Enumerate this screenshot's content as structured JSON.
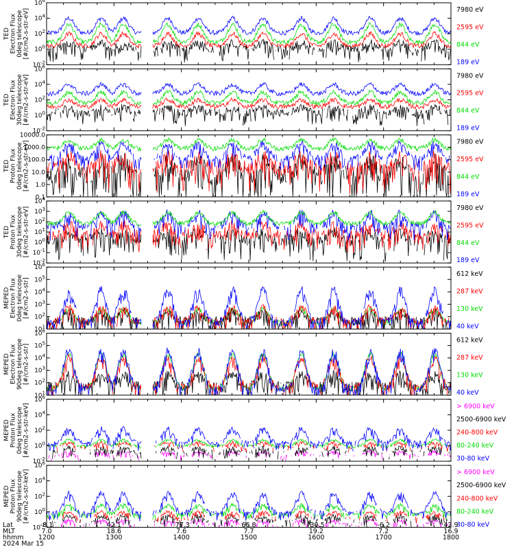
{
  "colors": {
    "black": "#000000",
    "red": "#ff0000",
    "green": "#00dd00",
    "blue": "#0000ff",
    "magenta": "#ff00ff"
  },
  "footer": {
    "row_labels": [
      "Lat",
      "MLT",
      "hhmm",
      "2024 Mar 15"
    ],
    "lat": [
      "-8.1",
      "42.1",
      "-77.3",
      "66.8",
      "-30.5",
      "-6.2",
      "42.9"
    ],
    "mlt": [
      "7.0",
      "18.6",
      "7.6",
      "7.7",
      "19.2",
      "7.2",
      "16.9"
    ],
    "hhmm": [
      "1200",
      "1300",
      "1400",
      "1500",
      "1600",
      "1700",
      "1800"
    ]
  },
  "chart_data": [
    {
      "type": "line",
      "ylabel": [
        "TED",
        "Electron Flux",
        "0deg telescope",
        "[#/cm2-s-str-eV]"
      ],
      "ylog": true,
      "ylim": [
        -2,
        6
      ],
      "ytick_labels": [
        {
          "e": 6,
          "text": "10^6"
        },
        {
          "e": 4,
          "text": "10^4"
        },
        {
          "e": 2,
          "text": "10^2"
        },
        {
          "e": 0,
          "text": "10^0"
        },
        {
          "e": -2,
          "text": "10^-2"
        }
      ],
      "legend": [
        {
          "label": "7980 eV",
          "color": "black"
        },
        {
          "label": "2595 eV",
          "color": "red"
        },
        {
          "label": "844 eV",
          "color": "green"
        },
        {
          "label": "189 eV",
          "color": "blue"
        }
      ],
      "series": [
        {
          "color": "blue",
          "base": 2.1,
          "spike": 4.0,
          "noise": 0.3
        },
        {
          "color": "green",
          "base": 0.9,
          "spike": 3.2,
          "noise": 0.3
        },
        {
          "color": "red",
          "base": 0.4,
          "spike": 2.0,
          "noise": 0.3
        },
        {
          "color": "black",
          "base": 0.0,
          "spike": 0.8,
          "noise": 0.5,
          "gaps": true
        }
      ]
    },
    {
      "type": "line",
      "ylabel": [
        "TED",
        "Electron Flux",
        "30deg telescope",
        "[#/cm2-s-str-eV]"
      ],
      "ylog": true,
      "ylim": [
        -2,
        6
      ],
      "ytick_labels": [
        {
          "e": 6,
          "text": "10^6"
        },
        {
          "e": 4,
          "text": "10^4"
        },
        {
          "e": 2,
          "text": "10^2"
        },
        {
          "e": 0,
          "text": "10^0"
        },
        {
          "e": -2,
          "text": "10^-2"
        }
      ],
      "legend": [
        {
          "label": "7980 eV",
          "color": "black"
        },
        {
          "label": "2595 eV",
          "color": "red"
        },
        {
          "label": "844 eV",
          "color": "green"
        },
        {
          "label": "189 eV",
          "color": "blue"
        }
      ],
      "series": [
        {
          "color": "blue",
          "base": 2.8,
          "spike": 4.0,
          "noise": 0.3
        },
        {
          "color": "green",
          "base": 1.6,
          "spike": 3.0,
          "noise": 0.3
        },
        {
          "color": "red",
          "base": 1.1,
          "spike": 2.0,
          "noise": 0.3
        },
        {
          "color": "black",
          "base": 0.3,
          "spike": 1.0,
          "noise": 0.5,
          "gaps": true
        }
      ]
    },
    {
      "type": "line",
      "ylabel": [
        "TED",
        "Proton Flux",
        "0deg telescope",
        "[#/cm2-s-str-eV]"
      ],
      "ylog": true,
      "ylim": [
        -1,
        4
      ],
      "ytick_labels": [
        {
          "e": 4,
          "text": "10000.0"
        },
        {
          "e": 3,
          "text": "1000.0"
        },
        {
          "e": 2,
          "text": "100.0"
        },
        {
          "e": 1,
          "text": "10.0"
        },
        {
          "e": 0,
          "text": "1.0"
        },
        {
          "e": -1,
          "text": "0.1"
        }
      ],
      "legend": [
        {
          "label": "7980 eV",
          "color": "black"
        },
        {
          "label": "2595 eV",
          "color": "red"
        },
        {
          "label": "844 eV",
          "color": "green"
        },
        {
          "label": "189 eV",
          "color": "blue"
        }
      ],
      "series": [
        {
          "color": "black",
          "base": 0.7,
          "spike": 1.8,
          "noise": 0.8,
          "gaps": true
        },
        {
          "color": "red",
          "base": 1.3,
          "spike": 2.2,
          "noise": 0.6,
          "gaps": true
        },
        {
          "color": "blue",
          "base": 2.1,
          "spike": 3.3,
          "noise": 0.3,
          "gaps": true
        },
        {
          "color": "green",
          "base": 2.9,
          "spike": 3.6,
          "noise": 0.2
        }
      ]
    },
    {
      "type": "line",
      "ylabel": [
        "TED",
        "Proton Flux",
        "30deg telescope",
        "[#/cm2-s-str-eV]"
      ],
      "ylog": true,
      "ylim": [
        -2,
        4
      ],
      "ytick_labels": [
        {
          "e": 4,
          "text": "10^4"
        },
        {
          "e": 3,
          "text": "10^3"
        },
        {
          "e": 2,
          "text": "10^2"
        },
        {
          "e": 1,
          "text": "10^1"
        },
        {
          "e": 0,
          "text": "10^0"
        },
        {
          "e": -1,
          "text": "10^-1"
        },
        {
          "e": -2,
          "text": "10^-2"
        }
      ],
      "legend": [
        {
          "label": "7980 eV",
          "color": "black"
        },
        {
          "label": "2595 eV",
          "color": "red"
        },
        {
          "label": "844 eV",
          "color": "green"
        },
        {
          "label": "189 eV",
          "color": "blue"
        }
      ],
      "series": [
        {
          "color": "black",
          "base": 0.2,
          "spike": 0.9,
          "noise": 0.6,
          "gaps": true
        },
        {
          "color": "red",
          "base": 0.7,
          "spike": 1.7,
          "noise": 0.5,
          "gaps": true
        },
        {
          "color": "blue",
          "base": 1.5,
          "spike": 2.8,
          "noise": 0.4,
          "gaps": true
        },
        {
          "color": "green",
          "base": 1.8,
          "spike": 2.9,
          "noise": 0.2
        }
      ]
    },
    {
      "type": "line",
      "ylabel": [
        "MEPED",
        "Electron Flux",
        "0deg telescope",
        "[#/cm2-s-str]"
      ],
      "ylog": true,
      "ylim": [
        1,
        6
      ],
      "ytick_labels": [
        {
          "e": 6,
          "text": "10^6"
        },
        {
          "e": 5,
          "text": "10^5"
        },
        {
          "e": 4,
          "text": "10^4"
        },
        {
          "e": 3,
          "text": "10^3"
        },
        {
          "e": 2,
          "text": "10^2"
        },
        {
          "e": 1,
          "text": "10^1"
        }
      ],
      "legend": [
        {
          "label": "612 keV",
          "color": "black"
        },
        {
          "label": "287 keV",
          "color": "red"
        },
        {
          "label": "130 keV",
          "color": "green"
        },
        {
          "label": "40 keV",
          "color": "blue"
        }
      ],
      "series": [
        {
          "color": "green",
          "base": 1.5,
          "spike": 2.6,
          "noise": 0.2
        },
        {
          "color": "black",
          "base": 1.6,
          "spike": 2.3,
          "noise": 0.4,
          "gaps": true
        },
        {
          "color": "red",
          "base": 1.6,
          "spike": 2.7,
          "noise": 0.3,
          "gaps": true
        },
        {
          "color": "blue",
          "base": 1.5,
          "spike": 4.2,
          "noise": 0.3,
          "gaps": true
        }
      ]
    },
    {
      "type": "line",
      "ylabel": [
        "MEPED",
        "Electron Flux",
        "90deg telescope",
        "[#/cm2-s-str]"
      ],
      "ylog": true,
      "ylim": [
        1,
        6
      ],
      "ytick_labels": [
        {
          "e": 6,
          "text": "10^6"
        },
        {
          "e": 5,
          "text": "10^5"
        },
        {
          "e": 4,
          "text": "10^4"
        },
        {
          "e": 3,
          "text": "10^3"
        },
        {
          "e": 2,
          "text": "10^2"
        },
        {
          "e": 1,
          "text": "10^1"
        }
      ],
      "legend": [
        {
          "label": "612 keV",
          "color": "black"
        },
        {
          "label": "287 keV",
          "color": "red"
        },
        {
          "label": "130 keV",
          "color": "green"
        },
        {
          "label": "40 keV",
          "color": "blue"
        }
      ],
      "series": [
        {
          "color": "green",
          "base": 1.5,
          "spike": 4.3,
          "noise": 0.2
        },
        {
          "color": "black",
          "base": 1.7,
          "spike": 2.6,
          "noise": 0.4,
          "gaps": true
        },
        {
          "color": "red",
          "base": 1.6,
          "spike": 4.0,
          "noise": 0.3,
          "gaps": true
        },
        {
          "color": "blue",
          "base": 1.5,
          "spike": 4.6,
          "noise": 0.3,
          "gaps": true
        }
      ]
    },
    {
      "type": "line",
      "ylabel": [
        "MEPED",
        "Proton Flux",
        "0deg telescope",
        "[#/cm2-s-str-keV]"
      ],
      "ylog": true,
      "ylim": [
        -2,
        6
      ],
      "ytick_labels": [
        {
          "e": 6,
          "text": "10^6"
        },
        {
          "e": 4,
          "text": "10^4"
        },
        {
          "e": 2,
          "text": "10^2"
        },
        {
          "e": 0,
          "text": "10^0"
        },
        {
          "e": -2,
          "text": "10^-2"
        }
      ],
      "legend": [
        {
          "label": "> 6900 keV",
          "color": "magenta"
        },
        {
          "label": "2500-6900 keV",
          "color": "black"
        },
        {
          "label": "240-800 keV",
          "color": "red"
        },
        {
          "label": "80-240 keV",
          "color": "green"
        },
        {
          "label": "30-80 keV",
          "color": "blue"
        }
      ],
      "series": [
        {
          "color": "magenta",
          "base": -1.3,
          "spike": -0.8,
          "noise": 0.2,
          "gaps": true,
          "sparse": true
        },
        {
          "color": "black",
          "base": -0.9,
          "spike": -0.3,
          "noise": 0.3,
          "gaps": true,
          "sparse": true
        },
        {
          "color": "red",
          "base": -0.2,
          "spike": 0.4,
          "noise": 0.2,
          "gaps": true,
          "sparse": true
        },
        {
          "color": "green",
          "base": 0.0,
          "spike": 0.8,
          "noise": 0.1,
          "gaps": true
        },
        {
          "color": "blue",
          "base": 0.3,
          "spike": 2.2,
          "noise": 0.3,
          "gaps": true
        }
      ]
    },
    {
      "type": "line",
      "ylabel": [
        "MEPED",
        "Proton Flux",
        "90deg telescope",
        "[#/cm2-s-str-keV]"
      ],
      "ylog": true,
      "ylim": [
        -2,
        6
      ],
      "ytick_labels": [
        {
          "e": 6,
          "text": "10^6"
        },
        {
          "e": 4,
          "text": "10^4"
        },
        {
          "e": 2,
          "text": "10^2"
        },
        {
          "e": 0,
          "text": "10^0"
        },
        {
          "e": -2,
          "text": "10^-2"
        }
      ],
      "legend": [
        {
          "label": "> 6900 keV",
          "color": "magenta"
        },
        {
          "label": "2500-6900 keV",
          "color": "black"
        },
        {
          "label": "240-800 keV",
          "color": "red"
        },
        {
          "label": "80-240 keV",
          "color": "green"
        },
        {
          "label": "30-80 keV",
          "color": "blue"
        }
      ],
      "series": [
        {
          "color": "magenta",
          "base": -1.7,
          "spike": -1.1,
          "noise": 0.2,
          "gaps": true,
          "sparse": true
        },
        {
          "color": "black",
          "base": -1.3,
          "spike": -0.6,
          "noise": 0.3,
          "gaps": true,
          "sparse": true
        },
        {
          "color": "red",
          "base": -0.8,
          "spike": 0.0,
          "noise": 0.2,
          "gaps": true,
          "sparse": true
        },
        {
          "color": "green",
          "base": -0.4,
          "spike": 0.9,
          "noise": 0.2,
          "gaps": true
        },
        {
          "color": "blue",
          "base": -0.2,
          "spike": 2.4,
          "noise": 0.3,
          "gaps": true
        }
      ]
    }
  ]
}
